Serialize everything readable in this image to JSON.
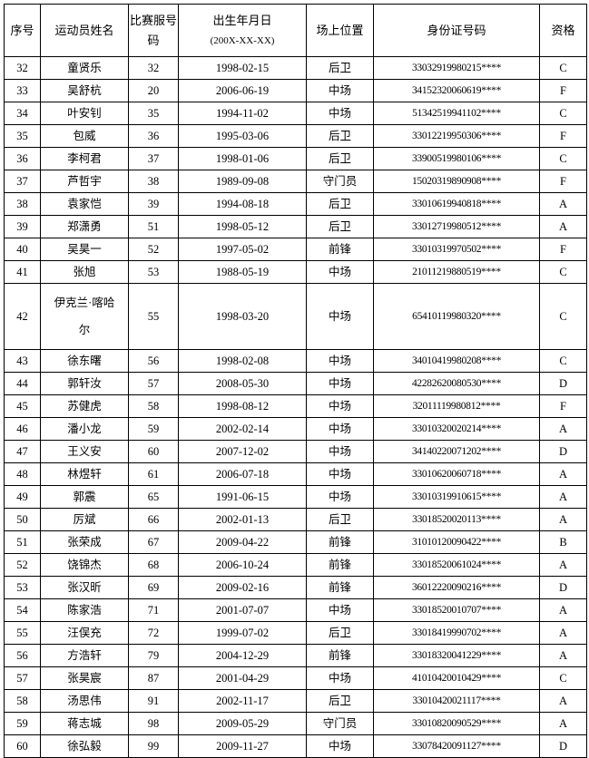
{
  "headers": {
    "index": "序号",
    "name": "运动员姓名",
    "jersey": "比赛服号码",
    "birth": "出生年月日",
    "birth_format": "(200X-XX-XX)",
    "position": "场上位置",
    "id_number": "身份证号码",
    "qualification": "资格"
  },
  "rows": [
    [
      "32",
      "童贤乐",
      "32",
      "1998-02-15",
      "后卫",
      "33032919980215****",
      "C"
    ],
    [
      "33",
      "吴舒杭",
      "20",
      "2006-06-19",
      "中场",
      "34152320060619****",
      "F"
    ],
    [
      "34",
      "叶安钊",
      "35",
      "1994-11-02",
      "中场",
      "51342519941102****",
      "C"
    ],
    [
      "35",
      "包威",
      "36",
      "1995-03-06",
      "后卫",
      "33012219950306****",
      "F"
    ],
    [
      "36",
      "李柯君",
      "37",
      "1998-01-06",
      "后卫",
      "33900519980106****",
      "C"
    ],
    [
      "37",
      "芦哲宇",
      "38",
      "1989-09-08",
      "守门员",
      "15020319890908****",
      "F"
    ],
    [
      "38",
      "袁家恺",
      "39",
      "1994-08-18",
      "后卫",
      "33010619940818****",
      "A"
    ],
    [
      "39",
      "郑潇勇",
      "51",
      "1998-05-12",
      "后卫",
      "33012719980512****",
      "A"
    ],
    [
      "40",
      "吴昊一",
      "52",
      "1997-05-02",
      "前锋",
      "33010319970502****",
      "F"
    ],
    [
      "41",
      "张旭",
      "53",
      "1988-05-19",
      "中场",
      "21011219880519****",
      "C"
    ],
    [
      "42",
      "伊克兰·喀哈尔",
      "55",
      "1998-03-20",
      "中场",
      "65410119980320****",
      "C"
    ],
    [
      "43",
      "徐东曙",
      "56",
      "1998-02-08",
      "中场",
      "34010419980208****",
      "C"
    ],
    [
      "44",
      "郭轩汝",
      "57",
      "2008-05-30",
      "中场",
      "42282620080530****",
      "D"
    ],
    [
      "45",
      "苏健虎",
      "58",
      "1998-08-12",
      "中场",
      "32011119980812****",
      "F"
    ],
    [
      "46",
      "潘小龙",
      "59",
      "2002-02-14",
      "中场",
      "33010320020214****",
      "A"
    ],
    [
      "47",
      "王义安",
      "60",
      "2007-12-02",
      "中场",
      "34140220071202****",
      "D"
    ],
    [
      "48",
      "林煜轩",
      "61",
      "2006-07-18",
      "中场",
      "33010620060718****",
      "A"
    ],
    [
      "49",
      "郭震",
      "65",
      "1991-06-15",
      "中场",
      "33010319910615****",
      "A"
    ],
    [
      "50",
      "厉斌",
      "66",
      "2002-01-13",
      "后卫",
      "33018520020113****",
      "A"
    ],
    [
      "51",
      "张荣成",
      "67",
      "2009-04-22",
      "前锋",
      "31010120090422****",
      "B"
    ],
    [
      "52",
      "饶锦杰",
      "68",
      "2006-10-24",
      "前锋",
      "33018520061024****",
      "A"
    ],
    [
      "53",
      "张汉昕",
      "69",
      "2009-02-16",
      "前锋",
      "36012220090216****",
      "D"
    ],
    [
      "54",
      "陈家浩",
      "71",
      "2001-07-07",
      "中场",
      "33018520010707****",
      "A"
    ],
    [
      "55",
      "汪俣充",
      "72",
      "1999-07-02",
      "后卫",
      "33018419990702****",
      "A"
    ],
    [
      "56",
      "方浩轩",
      "79",
      "2004-12-29",
      "前锋",
      "33018320041229****",
      "A"
    ],
    [
      "57",
      "张昊宸",
      "87",
      "2001-04-29",
      "中场",
      "41010420010429****",
      "C"
    ],
    [
      "58",
      "汤思伟",
      "91",
      "2002-11-17",
      "后卫",
      "33010420021117****",
      "A"
    ],
    [
      "59",
      "蒋志城",
      "98",
      "2009-05-29",
      "守门员",
      "33010820090529****",
      "A"
    ],
    [
      "60",
      "徐弘毅",
      "99",
      "2009-11-27",
      "中场",
      "33078420091127****",
      "D"
    ]
  ]
}
